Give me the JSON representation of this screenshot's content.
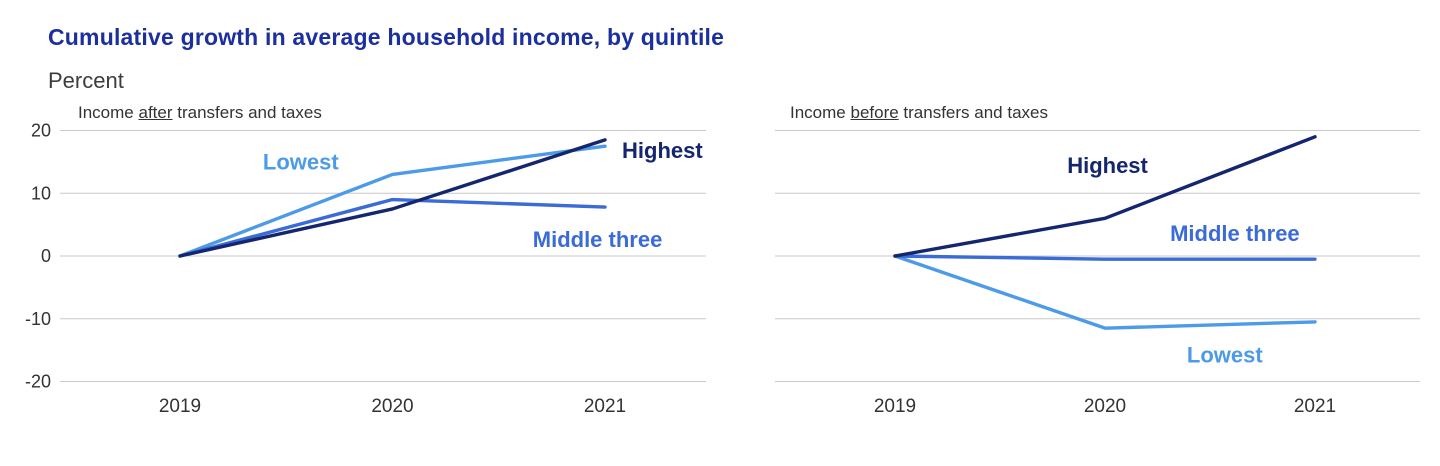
{
  "header": {
    "title": "Cumulative growth in average household income, by quintile",
    "unit_label": "Percent"
  },
  "colors": {
    "title": "#1b2f9e",
    "navy": "#14266e",
    "medium_blue": "#3a6bd6",
    "light_blue": "#4d9be8",
    "grid": "#c9c9c9",
    "axis_text": "#333333"
  },
  "chart_data": [
    {
      "type": "line",
      "panel": "after",
      "subtitle_parts": {
        "prefix": "Income ",
        "underlined": "after",
        "suffix": " transfers and taxes"
      },
      "x": [
        2019,
        2020,
        2021
      ],
      "ylim": [
        -20,
        20
      ],
      "yticks": [
        20,
        10,
        0,
        -10,
        -20
      ],
      "grid": true,
      "legend_position": "inline-labels",
      "series": [
        {
          "name": "Lowest",
          "color_key": "light_blue",
          "values": [
            0,
            13,
            17.5
          ],
          "label": {
            "text": "Lowest",
            "x": 2019.39,
            "y": 13.8
          }
        },
        {
          "name": "Middle three",
          "color_key": "medium_blue",
          "values": [
            0,
            9,
            7.8
          ],
          "label": {
            "text": "Middle three",
            "x": 2020.66,
            "y": 1.4
          }
        },
        {
          "name": "Highest",
          "color_key": "navy",
          "values": [
            0,
            7.5,
            18.5
          ],
          "label": {
            "text": "Highest",
            "x": 2021.08,
            "y": 15.6
          }
        }
      ]
    },
    {
      "type": "line",
      "panel": "before",
      "subtitle_parts": {
        "prefix": "Income ",
        "underlined": "before",
        "suffix": " transfers and taxes"
      },
      "x": [
        2019,
        2020,
        2021
      ],
      "ylim": [
        -20,
        20
      ],
      "yticks": [
        20,
        10,
        0,
        -10,
        -20
      ],
      "grid": true,
      "legend_position": "inline-labels",
      "series": [
        {
          "name": "Lowest",
          "color_key": "light_blue",
          "values": [
            0,
            -11.5,
            -10.5
          ],
          "label": {
            "text": "Lowest",
            "x": 2020.39,
            "y": -17
          }
        },
        {
          "name": "Middle three",
          "color_key": "medium_blue",
          "values": [
            0,
            -0.5,
            -0.5
          ],
          "label": {
            "text": "Middle three",
            "x": 2020.31,
            "y": 2.4
          }
        },
        {
          "name": "Highest",
          "color_key": "navy",
          "values": [
            0,
            6,
            19
          ],
          "label": {
            "text": "Highest",
            "x": 2019.82,
            "y": 13.2
          }
        }
      ]
    }
  ]
}
